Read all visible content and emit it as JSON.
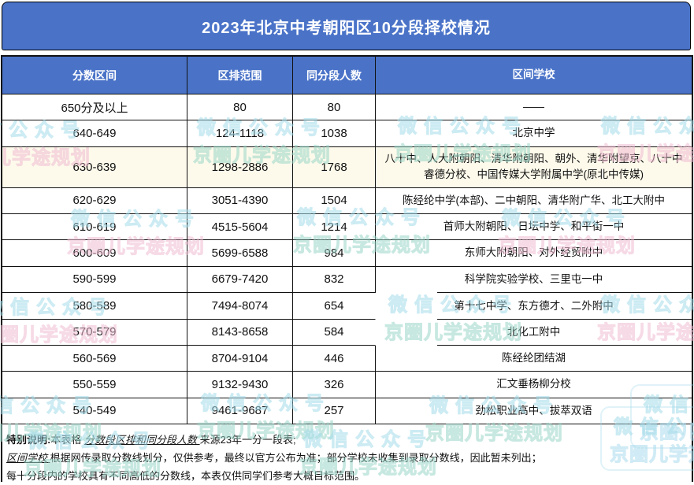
{
  "title": "2023年北京中考朝阳区10分段择校情况",
  "table": {
    "headers": [
      "分数区间",
      "区排范围",
      "同分段人数",
      "区间学校"
    ],
    "rows": [
      {
        "range": "650分及以上",
        "rank": "80",
        "count": "80",
        "schools": "——",
        "highlighted": false
      },
      {
        "range": "640-649",
        "rank": "124-1118",
        "count": "1038",
        "schools": "北京中学",
        "highlighted": false
      },
      {
        "range": "630-639",
        "rank": "1298-2886",
        "count": "1768",
        "schools": "八十中、人大附朝阳、清华附朝阳、朝外、清华附望京、八十中睿德分校、中国传媒大学附属中学(原北中传媒)",
        "highlighted": true
      },
      {
        "range": "620-629",
        "rank": "3051-4390",
        "count": "1504",
        "schools": "陈经纶中学(本部)、二中朝阳、清华附广华、北工大附中",
        "highlighted": false
      },
      {
        "range": "610-619",
        "rank": "4515-5604",
        "count": "1214",
        "schools": "首师大附朝阳、日坛中学、和平街一中",
        "highlighted": false
      },
      {
        "range": "600-609",
        "rank": "5699-6588",
        "count": "984",
        "schools": "东师大附朝阳、对外经贸附中",
        "highlighted": false
      },
      {
        "range": "590-599",
        "rank": "6679-7420",
        "count": "832",
        "schools": "科学院实验学校、三里屯一中",
        "highlighted": false
      },
      {
        "range": "580-589",
        "rank": "7494-8074",
        "count": "654",
        "schools": "第十七中学、东方德才、二外附中",
        "highlighted": false
      },
      {
        "range": "570-579",
        "rank": "8143-8658",
        "count": "584",
        "schools": "北化工附中",
        "highlighted": false
      },
      {
        "range": "560-569",
        "rank": "8704-9104",
        "count": "446",
        "schools": "陈经纶团结湖",
        "highlighted": false
      },
      {
        "range": "550-559",
        "rank": "9132-9430",
        "count": "326",
        "schools": "汇文垂杨柳分校",
        "highlighted": false
      },
      {
        "range": "540-549",
        "rank": "9461-9687",
        "count": "257",
        "schools": "劲松职业高中、拔萃双语",
        "highlighted": false
      }
    ]
  },
  "notes": {
    "lines": [
      [
        {
          "text": "特别说明:",
          "style": "bold"
        },
        {
          "text": "本表格 ",
          "style": "normal"
        },
        {
          "text": "分数段区排和同分段人数 ",
          "style": "ref"
        },
        {
          "text": "来源23年一分一段表;",
          "style": "normal"
        }
      ],
      [
        {
          "text": "区间学校 ",
          "style": "ref"
        },
        {
          "text": "根据网传录取分数线划分，仅供参考，最终以官方公布为准；部分学校未收集到录取分数线，因此暂未列出；",
          "style": "normal"
        }
      ],
      [
        {
          "text": "每十分段内的学校具有不同高低的分数线，本表仅供同学们参考大概目标范围。",
          "style": "normal"
        }
      ]
    ]
  },
  "watermark": {
    "line1": "微信公众号",
    "line2": "京圈儿学途规划"
  },
  "colors": {
    "header_blue": "#4a73c8",
    "highlight_row": "#fdfaeb",
    "border_black": "#111111",
    "watermark_cyan": "#a4dcea",
    "watermark_teal": "#9ad6c8",
    "watermark_pink": "#f0bcd2"
  }
}
